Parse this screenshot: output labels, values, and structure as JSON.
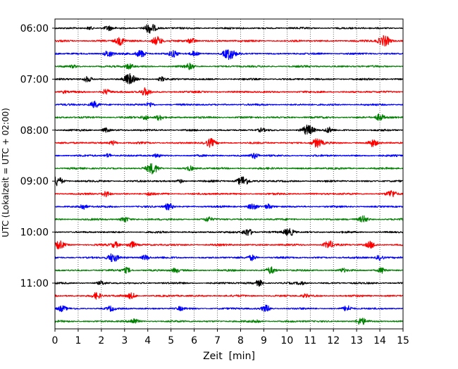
{
  "chart_data": {
    "type": "line",
    "title": "",
    "xlabel": "Zeit  [min]",
    "ylabel": "UTC (Lokalzeit = UTC + 02:00)",
    "xlim": [
      0,
      15
    ],
    "x_ticks": [
      0,
      1,
      2,
      3,
      4,
      5,
      6,
      7,
      8,
      9,
      10,
      11,
      12,
      13,
      14,
      15
    ],
    "x_tick_labels": [
      "0",
      "1",
      "2",
      "3",
      "4",
      "5",
      "6",
      "7",
      "8",
      "9",
      "10",
      "11",
      "12",
      "13",
      "14",
      "15"
    ],
    "y_tick_labels": [
      "06:00",
      "07:00",
      "08:00",
      "09:00",
      "10:00",
      "11:00"
    ],
    "grid": "vertical dotted lines at every minute",
    "legend": "none",
    "color_cycle": [
      "#000000",
      "#ff0000",
      "#0000ff",
      "#008000"
    ],
    "series": [
      {
        "start": "06:00",
        "events": [
          [
            4.1,
            0.9
          ],
          [
            1.5,
            0.3
          ],
          [
            2.3,
            0.4
          ]
        ]
      },
      {
        "start": "06:15",
        "events": [
          [
            2.8,
            0.7
          ],
          [
            4.4,
            0.8
          ],
          [
            5.9,
            0.5
          ],
          [
            14.2,
            1.0
          ]
        ]
      },
      {
        "start": "06:30",
        "events": [
          [
            2.3,
            0.6
          ],
          [
            3.7,
            0.7
          ],
          [
            5.1,
            0.6
          ],
          [
            7.5,
            1.0
          ],
          [
            6.0,
            0.4
          ]
        ]
      },
      {
        "start": "06:45",
        "events": [
          [
            3.2,
            0.5
          ],
          [
            5.8,
            0.5
          ],
          [
            0.8,
            0.2
          ]
        ]
      },
      {
        "start": "07:00",
        "events": [
          [
            1.4,
            0.5
          ],
          [
            3.2,
            0.9
          ],
          [
            4.6,
            0.4
          ]
        ]
      },
      {
        "start": "07:15",
        "events": [
          [
            2.2,
            0.5
          ],
          [
            3.9,
            0.7
          ],
          [
            0.4,
            0.2
          ]
        ]
      },
      {
        "start": "07:30",
        "events": [
          [
            1.7,
            0.6
          ],
          [
            4.1,
            0.4
          ]
        ]
      },
      {
        "start": "07:45",
        "events": [
          [
            3.9,
            0.4
          ],
          [
            4.5,
            0.5
          ],
          [
            14.0,
            0.6
          ]
        ]
      },
      {
        "start": "08:00",
        "events": [
          [
            2.2,
            0.4
          ],
          [
            10.9,
            0.9
          ],
          [
            11.8,
            0.5
          ],
          [
            8.9,
            0.3
          ]
        ]
      },
      {
        "start": "08:15",
        "events": [
          [
            2.5,
            0.4
          ],
          [
            6.7,
            0.7
          ],
          [
            11.3,
            0.8
          ],
          [
            13.7,
            0.6
          ]
        ]
      },
      {
        "start": "08:30",
        "events": [
          [
            2.3,
            0.4
          ],
          [
            8.6,
            0.5
          ],
          [
            4.4,
            0.3
          ]
        ]
      },
      {
        "start": "08:45",
        "events": [
          [
            4.2,
            0.9
          ],
          [
            5.8,
            0.4
          ]
        ]
      },
      {
        "start": "09:00",
        "events": [
          [
            0.1,
            0.8
          ],
          [
            8.1,
            0.9
          ],
          [
            5.4,
            0.3
          ]
        ]
      },
      {
        "start": "09:15",
        "events": [
          [
            2.2,
            0.5
          ],
          [
            14.5,
            0.6
          ],
          [
            4.1,
            0.3
          ]
        ]
      },
      {
        "start": "09:30",
        "events": [
          [
            1.2,
            0.5
          ],
          [
            4.9,
            0.6
          ],
          [
            8.5,
            0.6
          ],
          [
            9.2,
            0.4
          ]
        ]
      },
      {
        "start": "09:45",
        "events": [
          [
            3.0,
            0.5
          ],
          [
            6.6,
            0.4
          ],
          [
            13.3,
            0.6
          ]
        ]
      },
      {
        "start": "10:00",
        "events": [
          [
            8.3,
            0.7
          ],
          [
            10.0,
            0.5
          ],
          [
            10.2,
            0.4
          ]
        ]
      },
      {
        "start": "10:15",
        "events": [
          [
            0.2,
            0.7
          ],
          [
            3.3,
            0.6
          ],
          [
            11.8,
            0.7
          ],
          [
            13.6,
            0.6
          ],
          [
            2.6,
            0.5
          ]
        ]
      },
      {
        "start": "10:30",
        "events": [
          [
            2.5,
            0.8
          ],
          [
            3.9,
            0.5
          ],
          [
            8.5,
            0.5
          ],
          [
            14.0,
            0.5
          ]
        ]
      },
      {
        "start": "10:45",
        "events": [
          [
            3.1,
            0.5
          ],
          [
            5.2,
            0.4
          ],
          [
            9.3,
            0.6
          ],
          [
            14.1,
            0.5
          ],
          [
            12.4,
            0.3
          ]
        ]
      },
      {
        "start": "11:00",
        "events": [
          [
            8.8,
            0.5
          ],
          [
            2.0,
            0.3
          ],
          [
            10.6,
            0.3
          ]
        ]
      },
      {
        "start": "11:15",
        "events": [
          [
            1.8,
            0.6
          ],
          [
            3.3,
            0.5
          ],
          [
            10.8,
            0.3
          ]
        ]
      },
      {
        "start": "11:30",
        "events": [
          [
            0.3,
            0.5
          ],
          [
            2.4,
            0.4
          ],
          [
            9.1,
            0.6
          ],
          [
            12.6,
            0.5
          ],
          [
            5.4,
            0.3
          ]
        ]
      },
      {
        "start": "11:45",
        "events": [
          [
            3.4,
            0.5
          ],
          [
            13.2,
            0.6
          ],
          [
            8.7,
            0.3
          ]
        ]
      }
    ]
  }
}
